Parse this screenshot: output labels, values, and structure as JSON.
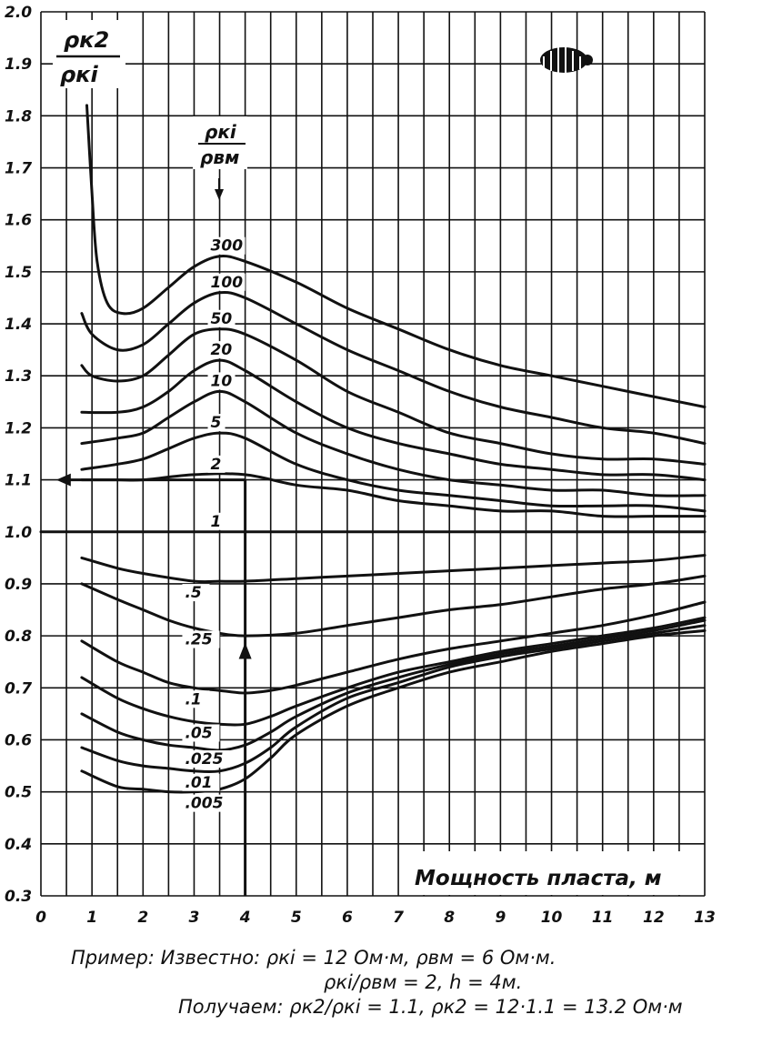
{
  "chart_data": {
    "type": "line",
    "title": "",
    "ylabel_num": "ρк2",
    "ylabel_den": "ρкі",
    "xlabel": "Мощность пласта, м",
    "legend_title_num": "ρкі",
    "legend_title_den": "ρвм",
    "xlim": [
      0,
      13
    ],
    "ylim": [
      0.3,
      2.0
    ],
    "grid": true,
    "x_ticks": [
      "0",
      "1",
      "2",
      "3",
      "4",
      "5",
      "6",
      "7",
      "8",
      "9",
      "10",
      "11",
      "12",
      "13"
    ],
    "y_ticks": [
      "0.3",
      "0.4",
      "0.5",
      "0.6",
      "0.7",
      "0.8",
      "0.9",
      "1.0",
      "1.1",
      "1.2",
      "1.3",
      "1.4",
      "1.5",
      "1.6",
      "1.7",
      "1.8",
      "1.9",
      "2.0"
    ],
    "series": [
      {
        "name": "300",
        "x": [
          0.9,
          1.0,
          1.1,
          1.3,
          1.6,
          2.0,
          2.5,
          3.0,
          3.5,
          4.0,
          5.0,
          6.0,
          7.0,
          8.0,
          9.0,
          10.0,
          11.0,
          12.0,
          13.0
        ],
        "y": [
          1.82,
          1.65,
          1.52,
          1.44,
          1.42,
          1.43,
          1.47,
          1.51,
          1.53,
          1.52,
          1.48,
          1.43,
          1.39,
          1.35,
          1.32,
          1.3,
          1.28,
          1.26,
          1.24
        ]
      },
      {
        "name": "100",
        "x": [
          0.8,
          1.0,
          1.5,
          2.0,
          2.5,
          3.0,
          3.5,
          4.0,
          5.0,
          6.0,
          7.0,
          8.0,
          9.0,
          10.0,
          11.0,
          12.0,
          13.0
        ],
        "y": [
          1.42,
          1.38,
          1.35,
          1.36,
          1.4,
          1.44,
          1.46,
          1.45,
          1.4,
          1.35,
          1.31,
          1.27,
          1.24,
          1.22,
          1.2,
          1.19,
          1.17
        ]
      },
      {
        "name": "50",
        "x": [
          0.8,
          1.0,
          1.5,
          2.0,
          2.5,
          3.0,
          3.5,
          4.0,
          5.0,
          6.0,
          7.0,
          8.0,
          9.0,
          10.0,
          11.0,
          12.0,
          13.0
        ],
        "y": [
          1.32,
          1.3,
          1.29,
          1.3,
          1.34,
          1.38,
          1.39,
          1.38,
          1.33,
          1.27,
          1.23,
          1.19,
          1.17,
          1.15,
          1.14,
          1.14,
          1.13
        ]
      },
      {
        "name": "20",
        "x": [
          0.8,
          1.5,
          2.0,
          2.5,
          3.0,
          3.5,
          4.0,
          5.0,
          6.0,
          7.0,
          8.0,
          9.0,
          10.0,
          11.0,
          12.0,
          13.0
        ],
        "y": [
          1.23,
          1.23,
          1.24,
          1.27,
          1.31,
          1.33,
          1.31,
          1.25,
          1.2,
          1.17,
          1.15,
          1.13,
          1.12,
          1.11,
          1.11,
          1.1
        ]
      },
      {
        "name": "10",
        "x": [
          0.8,
          1.5,
          2.0,
          2.5,
          3.0,
          3.5,
          4.0,
          5.0,
          6.0,
          7.0,
          8.0,
          9.0,
          10.0,
          11.0,
          12.0,
          13.0
        ],
        "y": [
          1.17,
          1.18,
          1.19,
          1.22,
          1.25,
          1.27,
          1.25,
          1.19,
          1.15,
          1.12,
          1.1,
          1.09,
          1.08,
          1.08,
          1.07,
          1.07
        ]
      },
      {
        "name": "5",
        "x": [
          0.8,
          1.5,
          2.0,
          2.5,
          3.0,
          3.5,
          4.0,
          5.0,
          6.0,
          7.0,
          8.0,
          9.0,
          10.0,
          11.0,
          12.0,
          13.0
        ],
        "y": [
          1.12,
          1.13,
          1.14,
          1.16,
          1.18,
          1.19,
          1.18,
          1.13,
          1.1,
          1.08,
          1.07,
          1.06,
          1.05,
          1.05,
          1.05,
          1.04
        ]
      },
      {
        "name": "2",
        "x": [
          0.8,
          1.5,
          2.0,
          3.0,
          4.0,
          5.0,
          6.0,
          7.0,
          8.0,
          9.0,
          10.0,
          11.0,
          12.0,
          13.0
        ],
        "y": [
          1.1,
          1.1,
          1.1,
          1.11,
          1.11,
          1.09,
          1.08,
          1.06,
          1.05,
          1.04,
          1.04,
          1.03,
          1.03,
          1.03
        ]
      },
      {
        "name": "1",
        "x": [
          0,
          13
        ],
        "y": [
          1.0,
          1.0
        ]
      },
      {
        "name": ".5",
        "x": [
          0.8,
          1.5,
          2.0,
          3.0,
          3.5,
          4.0,
          5.0,
          6.0,
          7.0,
          8.0,
          9.0,
          10.0,
          11.0,
          12.0,
          13.0
        ],
        "y": [
          0.95,
          0.93,
          0.92,
          0.905,
          0.905,
          0.905,
          0.91,
          0.915,
          0.92,
          0.925,
          0.93,
          0.935,
          0.94,
          0.945,
          0.955
        ]
      },
      {
        "name": ".25",
        "x": [
          0.8,
          1.5,
          2.0,
          2.5,
          3.0,
          3.5,
          4.0,
          5.0,
          6.0,
          7.0,
          8.0,
          9.0,
          10.0,
          11.0,
          12.0,
          13.0
        ],
        "y": [
          0.9,
          0.87,
          0.85,
          0.83,
          0.815,
          0.805,
          0.8,
          0.805,
          0.82,
          0.835,
          0.85,
          0.86,
          0.875,
          0.89,
          0.9,
          0.915
        ]
      },
      {
        "name": ".1",
        "x": [
          0.8,
          1.5,
          2.0,
          2.5,
          3.0,
          3.5,
          4.0,
          4.5,
          5.0,
          6.0,
          7.0,
          8.0,
          9.0,
          10.0,
          11.0,
          12.0,
          13.0
        ],
        "y": [
          0.79,
          0.75,
          0.73,
          0.71,
          0.7,
          0.695,
          0.69,
          0.695,
          0.705,
          0.73,
          0.755,
          0.775,
          0.79,
          0.805,
          0.82,
          0.84,
          0.865
        ]
      },
      {
        "name": ".05",
        "x": [
          0.8,
          1.5,
          2.0,
          2.5,
          3.0,
          3.5,
          4.0,
          4.5,
          5.0,
          6.0,
          7.0,
          8.0,
          9.0,
          10.0,
          11.0,
          12.0,
          13.0
        ],
        "y": [
          0.72,
          0.68,
          0.66,
          0.645,
          0.635,
          0.63,
          0.63,
          0.645,
          0.665,
          0.7,
          0.73,
          0.75,
          0.77,
          0.785,
          0.8,
          0.815,
          0.835
        ]
      },
      {
        "name": ".025",
        "x": [
          0.8,
          1.5,
          2.0,
          2.5,
          3.0,
          3.5,
          4.0,
          4.5,
          5.0,
          6.0,
          7.0,
          8.0,
          9.0,
          10.0,
          11.0,
          12.0,
          13.0
        ],
        "y": [
          0.65,
          0.615,
          0.6,
          0.59,
          0.585,
          0.58,
          0.59,
          0.615,
          0.645,
          0.69,
          0.72,
          0.745,
          0.765,
          0.78,
          0.795,
          0.81,
          0.83
        ]
      },
      {
        "name": ".01",
        "x": [
          0.8,
          1.5,
          2.0,
          2.5,
          3.0,
          3.5,
          4.0,
          4.5,
          5.0,
          6.0,
          7.0,
          8.0,
          9.0,
          10.0,
          11.0,
          12.0,
          13.0
        ],
        "y": [
          0.585,
          0.56,
          0.55,
          0.545,
          0.54,
          0.54,
          0.555,
          0.585,
          0.625,
          0.68,
          0.71,
          0.74,
          0.76,
          0.775,
          0.79,
          0.805,
          0.82
        ]
      },
      {
        "name": ".005",
        "x": [
          0.8,
          1.5,
          2.0,
          2.5,
          3.0,
          3.5,
          4.0,
          4.5,
          5.0,
          6.0,
          7.0,
          8.0,
          9.0,
          10.0,
          11.0,
          12.0,
          13.0
        ],
        "y": [
          0.54,
          0.51,
          0.505,
          0.5,
          0.5,
          0.505,
          0.525,
          0.565,
          0.61,
          0.665,
          0.7,
          0.73,
          0.75,
          0.77,
          0.785,
          0.8,
          0.81
        ]
      }
    ],
    "curve_labels": [
      "300",
      "100",
      "50",
      "20",
      "10",
      "5",
      "2",
      "1",
      ".5",
      ".25",
      ".1",
      ".05",
      ".025",
      ".01",
      ".005"
    ]
  },
  "example": {
    "line1": "Пример: Известно: ρкі = 12 Ом·м, ρвм = 6 Ом·м.",
    "line2": "ρкі/ρвм = 2, h = 4м.",
    "line3": "Получаем: ρк2/ρкі = 1.1, ρк2 = 12·1.1 = 13.2 Ом·м"
  }
}
